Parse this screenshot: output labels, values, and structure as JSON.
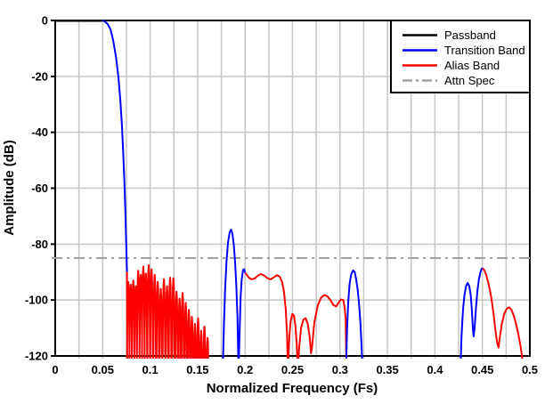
{
  "chart_data": {
    "type": "line",
    "title": "",
    "xlabel": "Normalized Frequency (Fs)",
    "ylabel": "Amplitude (dB)",
    "xlim": [
      0,
      0.5
    ],
    "ylim": [
      -120,
      0
    ],
    "x_ticks": [
      0,
      0.05,
      0.1,
      0.15,
      0.2,
      0.25,
      0.3,
      0.35,
      0.4,
      0.45,
      0.5
    ],
    "x_tick_labels": [
      "0",
      "0.05",
      "0.1",
      "0.15",
      "0.2",
      "0.25",
      "0.3",
      "0.35",
      "0.4",
      "0.45",
      "0.5"
    ],
    "y_ticks": [
      0,
      -20,
      -40,
      -60,
      -80,
      -100,
      -120
    ],
    "y_tick_labels": [
      "0",
      "-20",
      "-40",
      "-60",
      "-80",
      "-100",
      "-120"
    ],
    "x_minor_step": 0.025,
    "y_grid_step": 20,
    "grid": true,
    "grid_color": "#c6c6c6",
    "background": "#ffffff",
    "attn_spec_db": -85,
    "bands": {
      "passband": {
        "label": "Passband",
        "color": "#000000"
      },
      "transition": {
        "label": "Transition Band",
        "color": "#0000ff"
      },
      "alias": {
        "label": "Alias Band",
        "color": "#ff0000"
      },
      "attn": {
        "label": "Attn Spec",
        "color": "#a0a0a0"
      }
    },
    "legend": {
      "position": "top-right",
      "order": [
        "passband",
        "transition",
        "alias",
        "attn"
      ]
    },
    "lobe_half_width": 0.0015,
    "segments": [
      {
        "band": "passband",
        "points": [
          [
            0,
            0
          ],
          [
            0.0497,
            0
          ]
        ]
      },
      {
        "band": "transition",
        "points": [
          [
            0.0497,
            0
          ],
          [
            0.052,
            -0.3
          ],
          [
            0.055,
            -1.2
          ],
          [
            0.058,
            -3
          ],
          [
            0.061,
            -7
          ],
          [
            0.064,
            -13
          ],
          [
            0.0665,
            -20
          ],
          [
            0.0685,
            -28
          ],
          [
            0.0702,
            -37
          ],
          [
            0.0716,
            -47
          ],
          [
            0.0728,
            -57
          ],
          [
            0.0738,
            -67
          ],
          [
            0.0746,
            -77
          ],
          [
            0.0752,
            -85
          ],
          [
            0.0756,
            -90
          ]
        ]
      },
      {
        "band": "alias",
        "points": [
          [
            0.0756,
            -90
          ],
          [
            0.0757,
            -100
          ],
          [
            0.0759,
            -126
          ]
        ],
        "lobes": [
          [
            0.077,
            -93.5
          ],
          [
            0.0795,
            -94.5
          ],
          [
            0.0822,
            -93
          ],
          [
            0.0848,
            -95
          ],
          [
            0.0875,
            -89.5
          ],
          [
            0.0902,
            -91
          ],
          [
            0.0928,
            -88
          ],
          [
            0.0955,
            -90.5
          ],
          [
            0.0985,
            -87.5
          ],
          [
            0.1015,
            -89
          ],
          [
            0.1048,
            -91
          ],
          [
            0.108,
            -93.5
          ],
          [
            0.1112,
            -96
          ],
          [
            0.1145,
            -92.5
          ],
          [
            0.1178,
            -95
          ],
          [
            0.121,
            -92
          ],
          [
            0.1245,
            -92.2
          ],
          [
            0.1278,
            -97
          ],
          [
            0.131,
            -99.5
          ],
          [
            0.1342,
            -97.5
          ],
          [
            0.1375,
            -101
          ],
          [
            0.1408,
            -103.5
          ],
          [
            0.144,
            -106
          ],
          [
            0.1472,
            -108.5
          ],
          [
            0.1505,
            -106.5
          ],
          [
            0.1538,
            -111
          ],
          [
            0.1572,
            -109.5
          ],
          [
            0.1605,
            -113.5
          ]
        ]
      },
      {
        "band": "transition",
        "points": [
          [
            0.1765,
            -126
          ],
          [
            0.1778,
            -108
          ],
          [
            0.179,
            -96
          ],
          [
            0.1805,
            -86
          ],
          [
            0.182,
            -79.5
          ],
          [
            0.1838,
            -75.8
          ],
          [
            0.1853,
            -74.8
          ],
          [
            0.1868,
            -76.5
          ],
          [
            0.1882,
            -80.5
          ],
          [
            0.1895,
            -86.5
          ],
          [
            0.1908,
            -95
          ],
          [
            0.192,
            -106
          ],
          [
            0.1931,
            -126
          ],
          [
            0.1942,
            -112
          ],
          [
            0.1953,
            -99
          ],
          [
            0.1965,
            -92.5
          ],
          [
            0.1978,
            -89.3
          ],
          [
            0.199,
            -89
          ],
          [
            0.2002,
            -90.3
          ]
        ]
      },
      {
        "band": "alias",
        "points": [
          [
            0.2002,
            -90.3
          ],
          [
            0.2035,
            -91.8
          ],
          [
            0.2065,
            -92.6
          ],
          [
            0.21,
            -92.3
          ],
          [
            0.2135,
            -91.3
          ],
          [
            0.2165,
            -90.7
          ],
          [
            0.22,
            -91.2
          ],
          [
            0.2235,
            -92.2
          ],
          [
            0.227,
            -92.6
          ],
          [
            0.2305,
            -91.8
          ],
          [
            0.2335,
            -91.1
          ],
          [
            0.2365,
            -91.6
          ],
          [
            0.239,
            -93.5
          ],
          [
            0.241,
            -97
          ],
          [
            0.2428,
            -103
          ],
          [
            0.2442,
            -112
          ],
          [
            0.2452,
            -126
          ],
          [
            0.2465,
            -114
          ],
          [
            0.248,
            -107.5
          ],
          [
            0.2498,
            -105
          ],
          [
            0.2515,
            -105.5
          ],
          [
            0.253,
            -109
          ],
          [
            0.2545,
            -116
          ],
          [
            0.2555,
            -126
          ],
          [
            0.257,
            -117
          ],
          [
            0.259,
            -110
          ],
          [
            0.2615,
            -107
          ],
          [
            0.2638,
            -106.5
          ],
          [
            0.266,
            -108.5
          ],
          [
            0.268,
            -113
          ],
          [
            0.2695,
            -119
          ],
          [
            0.2705,
            -117
          ],
          [
            0.273,
            -108
          ],
          [
            0.2765,
            -102
          ],
          [
            0.28,
            -99.2
          ],
          [
            0.2835,
            -98.2
          ],
          [
            0.2865,
            -98.6
          ],
          [
            0.29,
            -100
          ],
          [
            0.293,
            -101.8
          ],
          [
            0.296,
            -102.3
          ],
          [
            0.2985,
            -101
          ],
          [
            0.301,
            -99.8
          ],
          [
            0.3035,
            -100
          ],
          [
            0.305,
            -103
          ],
          [
            0.306,
            -107
          ],
          [
            0.3068,
            -126
          ]
        ]
      },
      {
        "band": "transition",
        "points": [
          [
            0.3062,
            -126
          ],
          [
            0.3075,
            -110
          ],
          [
            0.3088,
            -100
          ],
          [
            0.3102,
            -94
          ],
          [
            0.3118,
            -90.8
          ],
          [
            0.3138,
            -89.4
          ],
          [
            0.3155,
            -90
          ],
          [
            0.317,
            -92.5
          ],
          [
            0.3185,
            -96
          ],
          [
            0.32,
            -101
          ],
          [
            0.3215,
            -108
          ],
          [
            0.3228,
            -117
          ],
          [
            0.3238,
            -126
          ]
        ]
      },
      {
        "band": "transition",
        "points": [
          [
            0.4268,
            -126
          ],
          [
            0.428,
            -113
          ],
          [
            0.4295,
            -104
          ],
          [
            0.431,
            -98.5
          ],
          [
            0.4328,
            -95
          ],
          [
            0.4345,
            -93.9
          ],
          [
            0.4362,
            -95
          ],
          [
            0.4378,
            -98.5
          ],
          [
            0.439,
            -104
          ],
          [
            0.44,
            -110.5
          ],
          [
            0.4408,
            -113
          ],
          [
            0.4418,
            -110
          ],
          [
            0.4432,
            -103
          ],
          [
            0.4448,
            -96.5
          ],
          [
            0.4465,
            -92.3
          ],
          [
            0.448,
            -90
          ],
          [
            0.4492,
            -88.8
          ],
          [
            0.4502,
            -88.6
          ]
        ]
      },
      {
        "band": "alias",
        "points": [
          [
            0.4502,
            -88.6
          ],
          [
            0.452,
            -89.3
          ],
          [
            0.454,
            -91
          ],
          [
            0.456,
            -93.5
          ],
          [
            0.458,
            -96.5
          ],
          [
            0.46,
            -100.5
          ],
          [
            0.462,
            -105.5
          ],
          [
            0.4638,
            -111
          ],
          [
            0.4655,
            -115
          ],
          [
            0.467,
            -117
          ],
          [
            0.4685,
            -113
          ],
          [
            0.4705,
            -108.5
          ],
          [
            0.473,
            -105
          ],
          [
            0.4755,
            -103.2
          ],
          [
            0.478,
            -102.6
          ],
          [
            0.4805,
            -103.4
          ],
          [
            0.483,
            -105.5
          ],
          [
            0.4855,
            -108.5
          ],
          [
            0.488,
            -112.5
          ],
          [
            0.4905,
            -117
          ],
          [
            0.4928,
            -123
          ],
          [
            0.494,
            -126
          ]
        ]
      }
    ]
  }
}
